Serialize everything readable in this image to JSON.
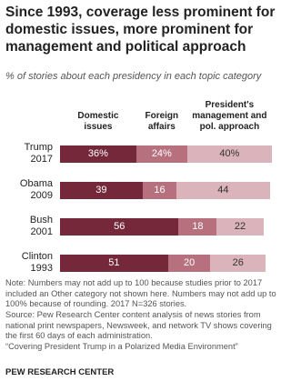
{
  "chart_data": {
    "type": "stacked-bar",
    "title": "Since 1993, coverage less prominent for domestic issues, more prominent for management  and political approach",
    "subtitle": "% of stories about each presidency in each topic category",
    "categories": [
      [
        "Trump",
        "2017"
      ],
      [
        "Obama",
        "2009"
      ],
      [
        "Bush",
        "2001"
      ],
      [
        "Clinton",
        "1993"
      ]
    ],
    "series": [
      {
        "name": "Domestic issues",
        "color": "#74283a",
        "label_color": "#ffffff",
        "values": [
          36,
          39,
          56,
          51
        ],
        "value_labels": [
          "36%",
          "39",
          "56",
          "51"
        ]
      },
      {
        "name": "Foreign affairs",
        "color": "#b7707d",
        "label_color": "#ffffff",
        "values": [
          24,
          16,
          18,
          20
        ],
        "value_labels": [
          "24%",
          "16",
          "18",
          "20"
        ]
      },
      {
        "name": "President's management and pol. approach",
        "color": "#dbb3bb",
        "label_color": "#333333",
        "values": [
          40,
          44,
          22,
          26
        ],
        "value_labels": [
          "40%",
          "44",
          "22",
          "26"
        ]
      }
    ],
    "note": "Note: Numbers may not add up to 100 because studies prior to 2017  included an Other category not shown here. Numbers may not add up to 100%  because of rounding. 2017 N=326 stories.",
    "source": "Source: Pew Research Center content analysis of news stories from national print newspapers, Newsweek, and network TV shows covering the first 60 days of each administration.",
    "report": "“Covering President Trump in a Polarized Media Environment”",
    "footer": "PEW RESEARCH CENTER"
  }
}
